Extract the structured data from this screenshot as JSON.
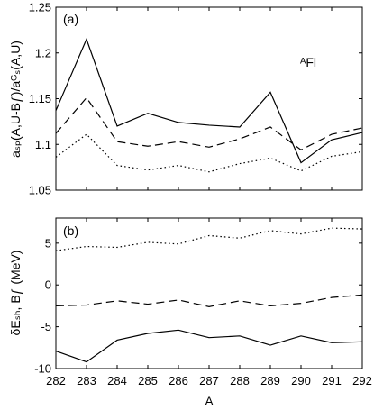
{
  "chart_data": [
    {
      "type": "line",
      "panel_label": "(a)",
      "annotation": "ᴬFl",
      "ylabel": "aₛₚ(A,U-Bƒ)/aᴳₛ(A,U)",
      "xlabel": "",
      "xlim": [
        282,
        292
      ],
      "ylim": [
        1.05,
        1.25
      ],
      "yticks": [
        "1.05",
        "1.1",
        "1.15",
        "1.2",
        "1.25"
      ],
      "grid": false,
      "x": [
        282,
        283,
        284,
        285,
        286,
        287,
        288,
        289,
        290,
        291,
        292
      ],
      "series": [
        {
          "style": "solid",
          "values": [
            1.137,
            1.215,
            1.12,
            1.134,
            1.124,
            1.121,
            1.119,
            1.157,
            1.08,
            1.105,
            1.113
          ]
        },
        {
          "style": "dashed",
          "values": [
            1.112,
            1.151,
            1.103,
            1.098,
            1.103,
            1.097,
            1.106,
            1.119,
            1.094,
            1.111,
            1.118
          ]
        },
        {
          "style": "dotted",
          "values": [
            1.086,
            1.111,
            1.077,
            1.072,
            1.077,
            1.07,
            1.079,
            1.085,
            1.071,
            1.087,
            1.092
          ]
        }
      ]
    },
    {
      "type": "line",
      "panel_label": "(b)",
      "ylabel": "δEₛₕ, Bƒ (MeV)",
      "xlabel": "A",
      "xlim": [
        282,
        292
      ],
      "ylim": [
        -10,
        8
      ],
      "yticks": [
        "-10",
        "-5",
        "0",
        "5"
      ],
      "xticks": [
        "282",
        "283",
        "284",
        "285",
        "286",
        "287",
        "288",
        "289",
        "290",
        "291",
        "292"
      ],
      "grid": false,
      "x": [
        282,
        283,
        284,
        285,
        286,
        287,
        288,
        289,
        290,
        291,
        292
      ],
      "series": [
        {
          "style": "solid",
          "values": [
            -7.9,
            -9.2,
            -6.6,
            -5.8,
            -5.4,
            -6.3,
            -6.1,
            -7.2,
            -6.1,
            -6.9,
            -6.8
          ]
        },
        {
          "style": "dashed",
          "values": [
            -2.5,
            -2.4,
            -1.9,
            -2.3,
            -1.8,
            -2.6,
            -1.9,
            -2.5,
            -2.2,
            -1.5,
            -1.2
          ]
        },
        {
          "style": "dotted",
          "values": [
            4.1,
            4.6,
            4.5,
            5.1,
            4.9,
            5.9,
            5.6,
            6.5,
            6.1,
            6.8,
            6.7
          ]
        }
      ]
    }
  ]
}
